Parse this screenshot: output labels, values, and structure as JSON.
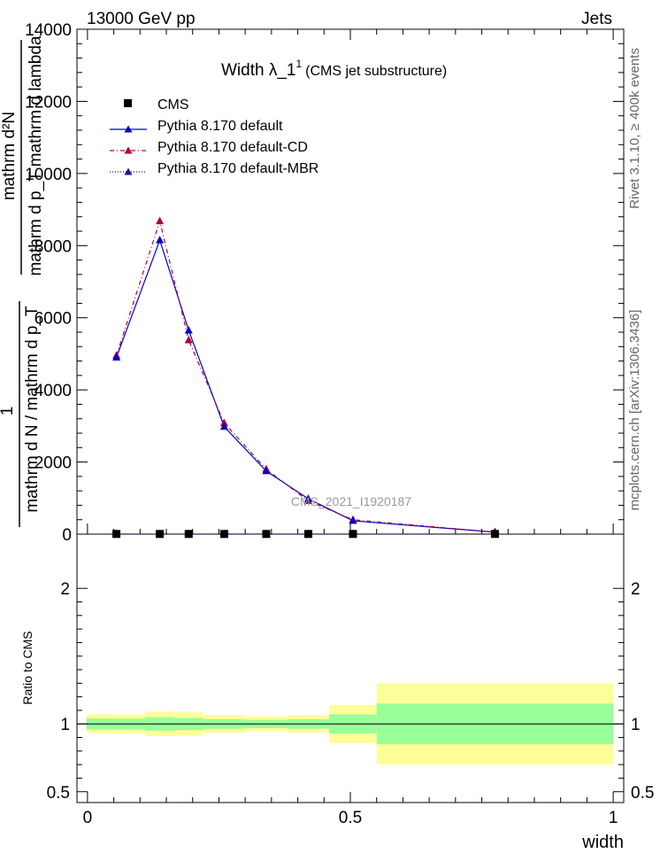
{
  "header": {
    "left": "13000 GeV pp",
    "right": "Jets"
  },
  "side_labels": {
    "rivet": "Rivet 3.1.10, ≥ 400k events",
    "mcplots": "mcplots.cern.ch [arXiv:1306.3436]"
  },
  "plot_title": {
    "main": "Width λ_1",
    "sup": "1",
    "sub": "(CMS jet substructure)"
  },
  "watermark": "CMS_2021_I1920187",
  "ylabel_main": {
    "numerator": "mathrm d²N",
    "denominator": "mathrm d p_T mathrm d lambda",
    "prefix_one": "1",
    "prefix_den": "mathrm d N / mathrm d p_T"
  },
  "ylabel_ratio": "Ratio to CMS",
  "xlabel": "width",
  "colors": {
    "data": "#000000",
    "default": "#0000cc",
    "cd": "#b0003a",
    "mbr": "#2a0f9a",
    "band_inner": "#99ff99",
    "band_outer": "#ffff99"
  },
  "chart_data": [
    {
      "type": "line",
      "panel": "main",
      "x_bins": [
        [
          0.0,
          0.11
        ],
        [
          0.11,
          0.165
        ],
        [
          0.165,
          0.22
        ],
        [
          0.22,
          0.3
        ],
        [
          0.3,
          0.38
        ],
        [
          0.38,
          0.46
        ],
        [
          0.46,
          0.55
        ],
        [
          0.55,
          1.0
        ]
      ],
      "x_centers": [
        0.055,
        0.1375,
        0.1925,
        0.26,
        0.34,
        0.42,
        0.505,
        0.775
      ],
      "series": [
        {
          "name": "CMS",
          "style": "points",
          "values": [
            5,
            5,
            5,
            5,
            5,
            5,
            5,
            5
          ]
        },
        {
          "name": "Pythia 8.170 default",
          "style": "solid",
          "values": [
            4900,
            8150,
            5650,
            2980,
            1750,
            980,
            370,
            55
          ]
        },
        {
          "name": "Pythia 8.170 default-CD",
          "style": "dashdot",
          "values": [
            4950,
            8680,
            5380,
            3080,
            1800,
            920,
            400,
            55
          ]
        },
        {
          "name": "Pythia 8.170 default-MBR",
          "style": "dotted",
          "values": [
            5,
            5,
            5,
            5,
            5,
            5,
            5,
            5
          ]
        }
      ],
      "xlim": [
        -0.02,
        1.02
      ],
      "ylim": [
        0,
        14000
      ],
      "y_ticks": [
        0,
        2000,
        4000,
        6000,
        8000,
        10000,
        12000,
        14000
      ],
      "legend_position": "top-left"
    },
    {
      "type": "area",
      "panel": "ratio",
      "x_bins": [
        [
          -0.002,
          0.11
        ],
        [
          0.11,
          0.165
        ],
        [
          0.165,
          0.22
        ],
        [
          0.22,
          0.3
        ],
        [
          0.3,
          0.38
        ],
        [
          0.38,
          0.46
        ],
        [
          0.46,
          0.55
        ],
        [
          0.55,
          1.0
        ]
      ],
      "inner_band": [
        [
          0.96,
          1.04
        ],
        [
          0.95,
          1.05
        ],
        [
          0.955,
          1.045
        ],
        [
          0.965,
          1.035
        ],
        [
          0.97,
          1.03
        ],
        [
          0.965,
          1.035
        ],
        [
          0.93,
          1.07
        ],
        [
          0.85,
          1.15
        ]
      ],
      "outer_band": [
        [
          0.93,
          1.07
        ],
        [
          0.91,
          1.09
        ],
        [
          0.915,
          1.085
        ],
        [
          0.935,
          1.065
        ],
        [
          0.945,
          1.055
        ],
        [
          0.935,
          1.065
        ],
        [
          0.86,
          1.14
        ],
        [
          0.7,
          1.3
        ]
      ],
      "reference": 1,
      "ylim": [
        0.4,
        2.4
      ],
      "y_tick_labels": [
        "0.5",
        "1",
        "2"
      ],
      "y_ticks": [
        0.5,
        1,
        2
      ],
      "x_tick_labels": [
        "0",
        "0.5",
        "1"
      ],
      "x_ticks": [
        0,
        0.5,
        1
      ]
    }
  ]
}
